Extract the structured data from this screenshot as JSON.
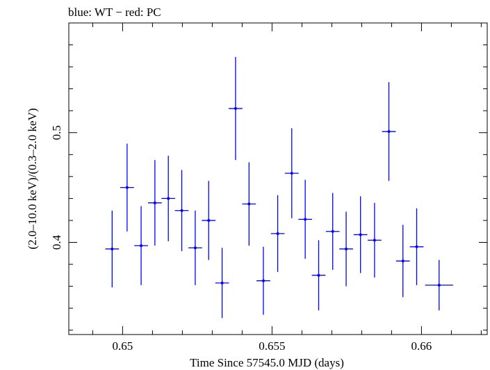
{
  "chart_data": {
    "type": "scatter",
    "title": "blue: WT − red: PC",
    "xlabel": "Time Since 57545.0 MJD (days)",
    "ylabel": "(2.0–10.0 keV)/(0.3–2.0 keV)",
    "xlim": [
      0.6482,
      0.6622
    ],
    "ylim": [
      0.316,
      0.6
    ],
    "x_ticks": [
      {
        "value": 0.65,
        "label": "0.65"
      },
      {
        "value": 0.655,
        "label": "0.655"
      },
      {
        "value": 0.66,
        "label": "0.66"
      }
    ],
    "y_ticks": [
      {
        "value": 0.4,
        "label": "0.4"
      },
      {
        "value": 0.5,
        "label": "0.5"
      }
    ],
    "series": [
      {
        "color": "#0000ff",
        "points": [
          {
            "x": 0.64965,
            "xerr": 0.00023,
            "y": 0.394,
            "yerr": 0.035
          },
          {
            "x": 0.65015,
            "xerr": 0.00023,
            "y": 0.45,
            "yerr": 0.04
          },
          {
            "x": 0.65062,
            "xerr": 0.00023,
            "y": 0.397,
            "yerr": 0.036
          },
          {
            "x": 0.65108,
            "xerr": 0.00023,
            "y": 0.436,
            "yerr": 0.039
          },
          {
            "x": 0.65153,
            "xerr": 0.00023,
            "y": 0.44,
            "yerr": 0.039
          },
          {
            "x": 0.65198,
            "xerr": 0.00023,
            "y": 0.429,
            "yerr": 0.037
          },
          {
            "x": 0.65243,
            "xerr": 0.00023,
            "y": 0.395,
            "yerr": 0.034
          },
          {
            "x": 0.65288,
            "xerr": 0.00023,
            "y": 0.42,
            "yerr": 0.036
          },
          {
            "x": 0.65333,
            "xerr": 0.00023,
            "y": 0.363,
            "yerr": 0.032
          },
          {
            "x": 0.65378,
            "xerr": 0.00023,
            "y": 0.522,
            "yerr": 0.047
          },
          {
            "x": 0.65423,
            "xerr": 0.00023,
            "y": 0.435,
            "yerr": 0.038
          },
          {
            "x": 0.65471,
            "xerr": 0.00023,
            "y": 0.365,
            "yerr": 0.031
          },
          {
            "x": 0.65519,
            "xerr": 0.00023,
            "y": 0.408,
            "yerr": 0.035
          },
          {
            "x": 0.65566,
            "xerr": 0.00023,
            "y": 0.463,
            "yerr": 0.041
          },
          {
            "x": 0.65611,
            "xerr": 0.00023,
            "y": 0.421,
            "yerr": 0.036
          },
          {
            "x": 0.65656,
            "xerr": 0.00023,
            "y": 0.37,
            "yerr": 0.032
          },
          {
            "x": 0.65703,
            "xerr": 0.00023,
            "y": 0.41,
            "yerr": 0.035
          },
          {
            "x": 0.65748,
            "xerr": 0.00023,
            "y": 0.394,
            "yerr": 0.034
          },
          {
            "x": 0.65796,
            "xerr": 0.00023,
            "y": 0.407,
            "yerr": 0.035
          },
          {
            "x": 0.65843,
            "xerr": 0.00023,
            "y": 0.402,
            "yerr": 0.034
          },
          {
            "x": 0.65891,
            "xerr": 0.00023,
            "y": 0.501,
            "yerr": 0.045
          },
          {
            "x": 0.65938,
            "xerr": 0.00023,
            "y": 0.383,
            "yerr": 0.033
          },
          {
            "x": 0.65984,
            "xerr": 0.00023,
            "y": 0.396,
            "yerr": 0.035
          },
          {
            "x": 0.66059,
            "xerr": 0.00047,
            "y": 0.361,
            "yerr": 0.023
          }
        ]
      }
    ],
    "grid": false,
    "legend": "none"
  }
}
